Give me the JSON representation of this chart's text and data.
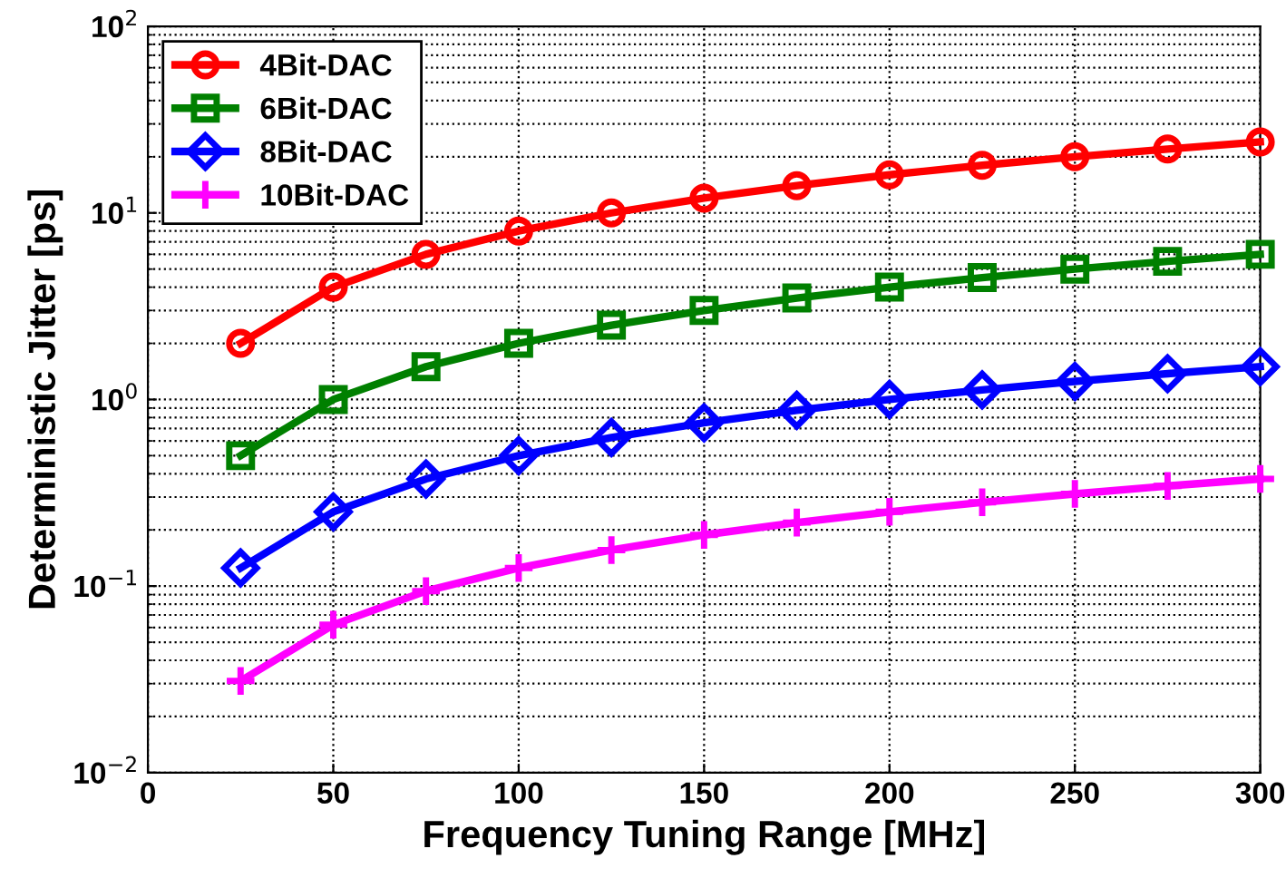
{
  "chart_data": {
    "type": "line",
    "xlabel": "Frequency Tuning Range [MHz]",
    "ylabel": "Deterministic Jitter [ps]",
    "x": [
      25,
      50,
      75,
      100,
      125,
      150,
      175,
      200,
      225,
      250,
      275,
      300
    ],
    "series": [
      {
        "name": "4Bit-DAC",
        "color": "#ff0000",
        "marker": "circle",
        "values": [
          2,
          4,
          6,
          8,
          10,
          12,
          14,
          16,
          18,
          20,
          22,
          24
        ]
      },
      {
        "name": "6Bit-DAC",
        "color": "#008000",
        "marker": "square",
        "values": [
          0.5,
          1,
          1.5,
          2,
          2.5,
          3,
          3.5,
          4,
          4.5,
          5,
          5.5,
          6
        ]
      },
      {
        "name": "8Bit-DAC",
        "color": "#0000ff",
        "marker": "diamond",
        "values": [
          0.125,
          0.25,
          0.375,
          0.5,
          0.625,
          0.75,
          0.875,
          1,
          1.125,
          1.25,
          1.375,
          1.5
        ]
      },
      {
        "name": "10Bit-DAC",
        "color": "#ff00ff",
        "marker": "cross",
        "values": [
          0.031,
          0.062,
          0.094,
          0.125,
          0.156,
          0.188,
          0.219,
          0.25,
          0.281,
          0.312,
          0.344,
          0.375
        ]
      }
    ],
    "log": "y",
    "xlim": [
      0,
      300
    ],
    "xticks": [
      0,
      50,
      100,
      150,
      200,
      250,
      300
    ],
    "ylim": [
      0.01,
      100
    ],
    "yticks": [
      {
        "value": 0.01,
        "label": "10$^{−2}$"
      },
      {
        "value": 0.1,
        "label": "10$^{−1}$"
      },
      {
        "value": 1,
        "label": "10$^{0}$"
      },
      {
        "value": 10,
        "label": "10$^{1}$"
      },
      {
        "value": 100,
        "label": "10$^{2}$"
      }
    ],
    "grid": true,
    "legend": "top left",
    "line_style": "solid"
  }
}
